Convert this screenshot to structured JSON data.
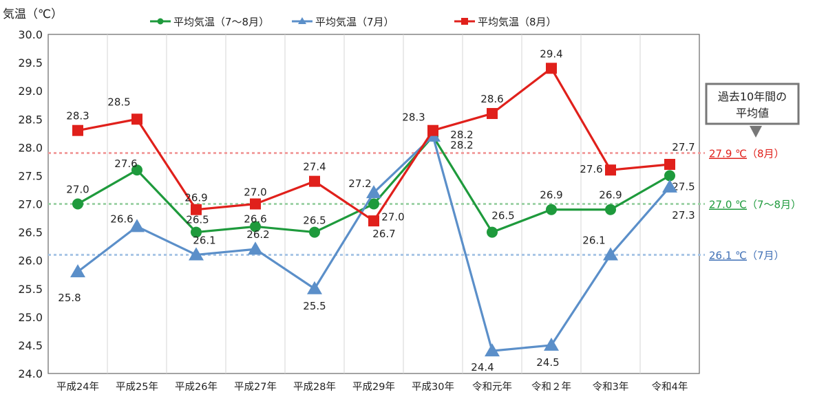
{
  "chart_data": {
    "type": "line",
    "ylabel": "気温（℃）",
    "ylim": [
      24.0,
      30.0
    ],
    "ytick_step": 0.5,
    "grid": "vertical",
    "legend_position": "top",
    "categories": [
      "平成24年",
      "平成25年",
      "平成26年",
      "平成27年",
      "平成28年",
      "平成29年",
      "平成30年",
      "令和元年",
      "令和２年",
      "令和3年",
      "令和4年"
    ],
    "series": [
      {
        "name": "平均気温（7～8月）",
        "color": "#1e9a3c",
        "marker": "circle",
        "values": [
          27.0,
          27.6,
          26.5,
          26.6,
          26.5,
          27.0,
          28.2,
          26.5,
          26.9,
          26.9,
          27.5
        ]
      },
      {
        "name": "平均気温（7月）",
        "color": "#5b8fc9",
        "marker": "triangle",
        "values": [
          25.8,
          26.6,
          26.1,
          26.2,
          25.5,
          27.2,
          28.2,
          24.4,
          24.5,
          26.1,
          27.3
        ]
      },
      {
        "name": "平均気温（8月）",
        "color": "#e0201b",
        "marker": "square",
        "values": [
          28.3,
          28.5,
          26.9,
          27.0,
          27.4,
          26.7,
          28.3,
          28.6,
          29.4,
          27.6,
          27.7
        ]
      }
    ],
    "reference_lines": [
      {
        "value": 27.9,
        "label": "27.9 ℃",
        "suffix": "（8月）",
        "color": "#e0201b",
        "line_color": "#f2a0a0"
      },
      {
        "value": 27.0,
        "label": "27.0 ℃",
        "suffix": "（7～8月）",
        "color": "#1e9a3c",
        "line_color": "#9fd3a8"
      },
      {
        "value": 26.1,
        "label": "26.1 ℃",
        "suffix": "（7月）",
        "color": "#3f6fb5",
        "line_color": "#a9c6e6"
      }
    ],
    "annotation": {
      "line1": "過去10年間の",
      "line2": "平均値"
    }
  }
}
